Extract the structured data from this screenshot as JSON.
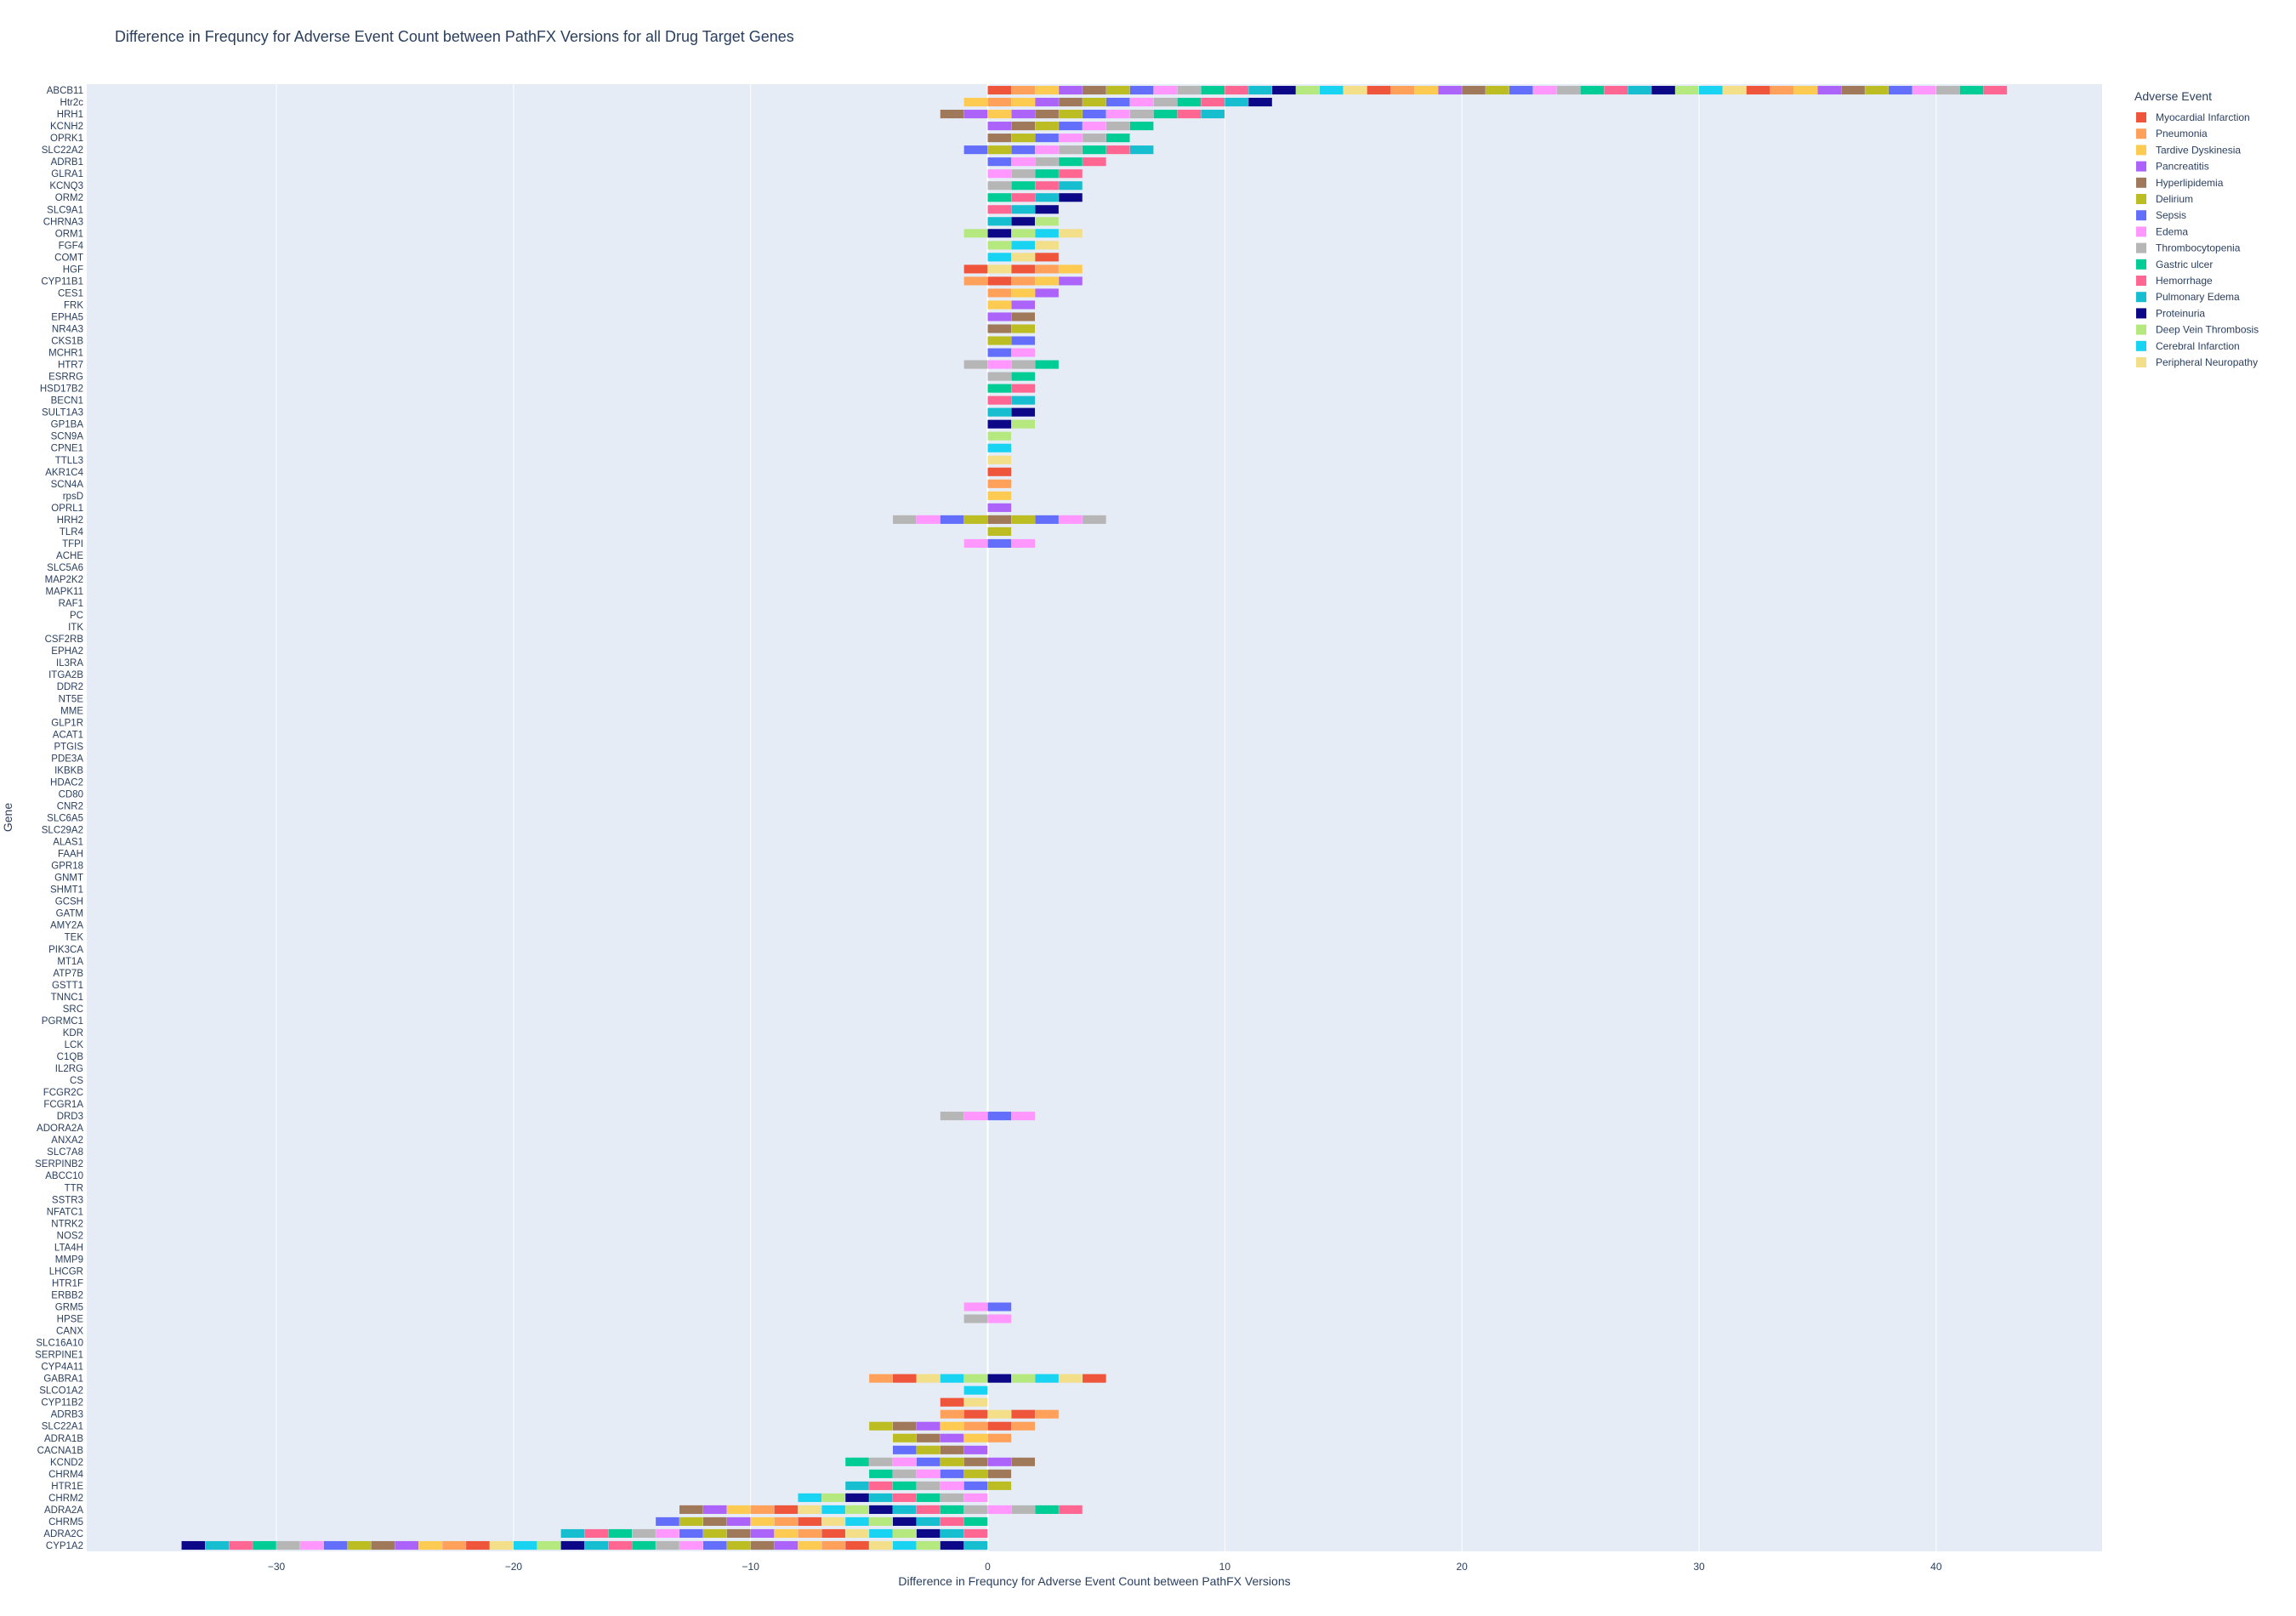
{
  "chart_data": {
    "type": "bar",
    "orientation": "horizontal",
    "barmode": "relative",
    "title": "Difference in Frequncy for Adverse Event Count between PathFX Versions for all Drug Target Genes",
    "xlabel": "Difference in Frequncy for Adverse Event Count between PathFX Versions",
    "ylabel": "Gene",
    "xlim": [
      -38,
      47
    ],
    "xticks": [
      -30,
      -20,
      -10,
      0,
      10,
      20,
      30,
      40
    ],
    "xtick_labels": [
      "−30",
      "−20",
      "−10",
      "0",
      "10",
      "20",
      "30",
      "40"
    ],
    "grid": true,
    "legend": {
      "title": "Adverse Event",
      "placement": "top-right-outside"
    },
    "categories": [
      "ABCB11",
      "Htr2c",
      "HRH1",
      "KCNH2",
      "OPRK1",
      "SLC22A2",
      "ADRB1",
      "GLRA1",
      "KCNQ3",
      "ORM2",
      "SLC9A1",
      "CHRNA3",
      "ORM1",
      "FGF4",
      "COMT",
      "HGF",
      "CYP11B1",
      "CES1",
      "FRK",
      "EPHA5",
      "NR4A3",
      "CKS1B",
      "MCHR1",
      "HTR7",
      "ESRRG",
      "HSD17B2",
      "BECN1",
      "SULT1A3",
      "GP1BA",
      "SCN9A",
      "CPNE1",
      "TTLL3",
      "AKR1C4",
      "SCN4A",
      "rpsD",
      "OPRL1",
      "HRH2",
      "TLR4",
      "TFPI",
      "ACHE",
      "SLC5A6",
      "MAP2K2",
      "MAPK11",
      "RAF1",
      "PC",
      "ITK",
      "CSF2RB",
      "EPHA2",
      "IL3RA",
      "ITGA2B",
      "DDR2",
      "NT5E",
      "MME",
      "GLP1R",
      "ACAT1",
      "PTGIS",
      "PDE3A",
      "IKBKB",
      "HDAC2",
      "CD80",
      "CNR2",
      "SLC6A5",
      "SLC29A2",
      "ALAS1",
      "FAAH",
      "GPR18",
      "GNMT",
      "SHMT1",
      "GCSH",
      "GATM",
      "AMY2A",
      "TEK",
      "PIK3CA",
      "MT1A",
      "ATP7B",
      "GSTT1",
      "TNNC1",
      "SRC",
      "PGRMC1",
      "KDR",
      "LCK",
      "C1QB",
      "IL2RG",
      "CS",
      "FCGR2C",
      "FCGR1A",
      "DRD3",
      "ADORA2A",
      "ANXA2",
      "SLC7A8",
      "SERPINB2",
      "ABCC10",
      "TTR",
      "SSTR3",
      "NFATC1",
      "NTRK2",
      "NOS2",
      "LTA4H",
      "MMP9",
      "LHCGR",
      "HTR1F",
      "ERBB2",
      "GRM5",
      "HPSE",
      "CANX",
      "SLC16A10",
      "SERPINE1",
      "CYP4A11",
      "GABRA1",
      "SLCO1A2",
      "CYP11B2",
      "ADRB3",
      "SLC22A1",
      "ADRA1B",
      "CACNA1B",
      "KCND2",
      "CHRM4",
      "HTR1E",
      "CHRM2",
      "ADRA2A",
      "CHRM5",
      "ADRA2C",
      "CYP1A2"
    ],
    "series": [
      {
        "name": "Myocardial Infarction",
        "color": "#EF553B"
      },
      {
        "name": "Pneumonia",
        "color": "#FFA15A"
      },
      {
        "name": "Tardive Dyskinesia",
        "color": "#FECB52"
      },
      {
        "name": "Pancreatitis",
        "color": "#AB63FA"
      },
      {
        "name": "Hyperlipidemia",
        "color": "#A0785A"
      },
      {
        "name": "Delirium",
        "color": "#BCBD22"
      },
      {
        "name": "Sepsis",
        "color": "#636EFA"
      },
      {
        "name": "Edema",
        "color": "#FF97FF"
      },
      {
        "name": "Thrombocytopenia",
        "color": "#B6B6B6"
      },
      {
        "name": "Gastric ulcer",
        "color": "#00CC96"
      },
      {
        "name": "Hemorrhage",
        "color": "#FF6692"
      },
      {
        "name": "Pulmonary Edema",
        "color": "#17BECF"
      },
      {
        "name": "Proteinuria",
        "color": "#0D0887"
      },
      {
        "name": "Deep Vein Thrombosis",
        "color": "#B6E880"
      },
      {
        "name": "Cerebral Infarction",
        "color": "#19D3F3"
      },
      {
        "name": "Peripheral Neuropathy",
        "color": "#F3DE8A"
      }
    ],
    "positive_totals": {
      "ABCB11": 43,
      "Htr2c": 12,
      "HRH1": 10,
      "KCNH2": 7,
      "OPRK1": 6,
      "SLC22A2": 7,
      "ADRB1": 5,
      "GLRA1": 4,
      "KCNQ3": 4,
      "ORM2": 4,
      "SLC9A1": 3,
      "CHRNA3": 3,
      "ORM1": 4,
      "FGF4": 3,
      "COMT": 3,
      "HGF": 4,
      "CYP11B1": 4,
      "CES1": 3,
      "FRK": 2,
      "EPHA5": 2,
      "NR4A3": 2,
      "CKS1B": 2,
      "MCHR1": 2,
      "HTR7": 3,
      "ESRRG": 2,
      "HSD17B2": 2,
      "BECN1": 2,
      "SULT1A3": 2,
      "GP1BA": 2,
      "SCN9A": 1,
      "CPNE1": 1,
      "TTLL3": 1,
      "AKR1C4": 1,
      "SCN4A": 1,
      "rpsD": 1,
      "OPRL1": 1,
      "HRH2": 5,
      "TLR4": 1,
      "TFPI": 2,
      "DRD3": 2,
      "GRM5": 1,
      "HPSE": 1,
      "GABRA1": 5,
      "ADRB3": 3,
      "SLC22A1": 2,
      "ADRA1B": 1,
      "KCND2": 2,
      "CHRM4": 1,
      "HTR1E": 1,
      "ADRA2A": 4
    },
    "negative_totals": {
      "Htr2c": -1,
      "HRH1": -2,
      "SLC22A2": -1,
      "ORM1": -1,
      "HGF": -1,
      "CYP11B1": -1,
      "HTR7": -1,
      "HRH2": -4,
      "TFPI": -1,
      "DRD3": -2,
      "GRM5": -1,
      "HPSE": -1,
      "GABRA1": -5,
      "SLCO1A2": -1,
      "CYP11B2": -2,
      "ADRB3": -2,
      "SLC22A1": -5,
      "ADRA1B": -4,
      "CACNA1B": -4,
      "KCND2": -6,
      "CHRM4": -5,
      "HTR1E": -6,
      "CHRM2": -8,
      "ADRA2A": -13,
      "CHRM5": -14,
      "ADRA2C": -18,
      "CYP1A2": -34
    }
  }
}
